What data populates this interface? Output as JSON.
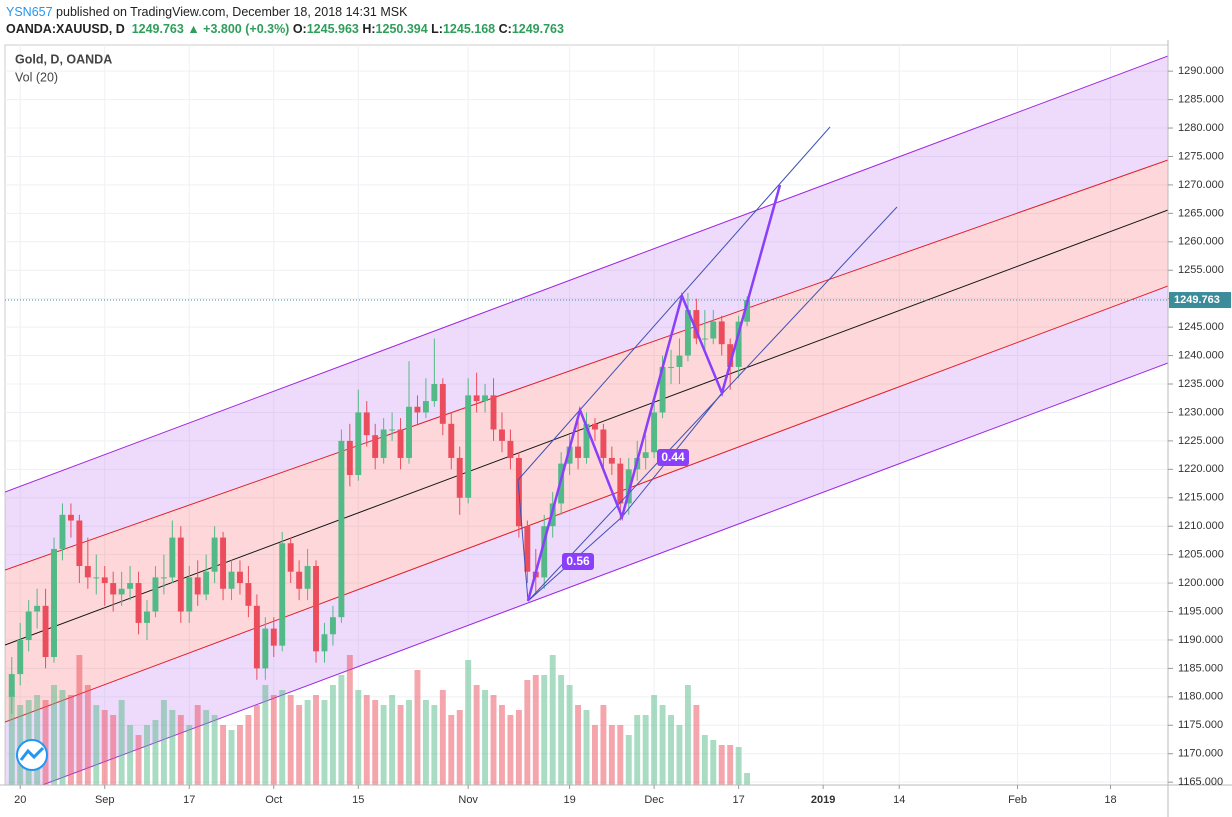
{
  "header": {
    "user": "YSN657",
    "published": " published on TradingView.com, December 18, 2018 14:31 MSK",
    "symbol": "OANDA:XAUUSD, D",
    "change": "▲ +3.800 (+0.3%)",
    "o": "O:",
    "h": "H:",
    "l": "L:",
    "c": "C:"
  },
  "chart_data": {
    "type": "candlestick",
    "title": "Gold, D, OANDA",
    "volume_title": "Vol (20)",
    "annotations": [
      "0.56",
      "0.44"
    ],
    "up_color": "#53b987",
    "down_color": "#eb4d5c",
    "xlim": [
      -0.8,
      136.8
    ],
    "xticks": [
      {
        "value": 1,
        "label": "20"
      },
      {
        "value": 11,
        "label": "Sep"
      },
      {
        "value": 21,
        "label": "17"
      },
      {
        "value": 31,
        "label": "Oct"
      },
      {
        "value": 41,
        "label": "15"
      },
      {
        "value": 54,
        "label": "Nov"
      },
      {
        "value": 66,
        "label": "19"
      },
      {
        "value": 76,
        "label": "Dec"
      },
      {
        "value": 86,
        "label": "17"
      },
      {
        "value": 96,
        "label": "2019"
      },
      {
        "value": 105,
        "label": "14"
      },
      {
        "value": 119,
        "label": "Feb"
      },
      {
        "value": 130,
        "label": "18"
      }
    ],
    "ylim": [
      1164.5,
      1294.6
    ],
    "yticks": [
      {
        "value": 1165,
        "label": "1165.000"
      },
      {
        "value": 1170,
        "label": "1170.000"
      },
      {
        "value": 1175,
        "label": "1175.000"
      },
      {
        "value": 1180,
        "label": "1180.000"
      },
      {
        "value": 1185,
        "label": "1185.000"
      },
      {
        "value": 1190,
        "label": "1190.000"
      },
      {
        "value": 1195,
        "label": "1195.000"
      },
      {
        "value": 1200,
        "label": "1200.000"
      },
      {
        "value": 1205,
        "label": "1205.000"
      },
      {
        "value": 1210,
        "label": "1210.000"
      },
      {
        "value": 1215,
        "label": "1215.000"
      },
      {
        "value": 1220,
        "label": "1220.000"
      },
      {
        "value": 1225,
        "label": "1225.000"
      },
      {
        "value": 1230,
        "label": "1230.000"
      },
      {
        "value": 1235,
        "label": "1235.000"
      },
      {
        "value": 1240,
        "label": "1240.000"
      },
      {
        "value": 1245,
        "label": "1245.000"
      },
      {
        "value": 1250,
        "label": "1250.000"
      },
      {
        "value": 1255,
        "label": "1255.000"
      },
      {
        "value": 1260,
        "label": "1260.000"
      },
      {
        "value": 1265,
        "label": "1265.000"
      },
      {
        "value": 1270,
        "label": "1270.000"
      },
      {
        "value": 1275,
        "label": "1275.000"
      },
      {
        "value": 1280,
        "label": "1280.000"
      },
      {
        "value": 1285,
        "label": "1285.000"
      },
      {
        "value": 1290,
        "label": "1290.000"
      }
    ],
    "grid": true,
    "vlim": [
      0,
      140
    ],
    "ohlc": [
      [
        1180,
        1187,
        1177,
        1184
      ],
      [
        1184,
        1193,
        1182,
        1190
      ],
      [
        1190,
        1197,
        1188,
        1195
      ],
      [
        1195,
        1199,
        1192,
        1196
      ],
      [
        1196,
        1199,
        1185,
        1187
      ],
      [
        1187,
        1208,
        1186,
        1206
      ],
      [
        1206,
        1214,
        1204,
        1212
      ],
      [
        1212,
        1214,
        1208,
        1211
      ],
      [
        1211,
        1212,
        1200,
        1203
      ],
      [
        1203,
        1208,
        1199,
        1201
      ],
      [
        1201,
        1205,
        1198,
        1201
      ],
      [
        1201,
        1203,
        1196,
        1200
      ],
      [
        1200,
        1202,
        1195,
        1198
      ],
      [
        1198,
        1202,
        1196,
        1199
      ],
      [
        1199,
        1203,
        1197,
        1200
      ],
      [
        1200,
        1202,
        1191,
        1193
      ],
      [
        1193,
        1197,
        1190,
        1195
      ],
      [
        1195,
        1203,
        1194,
        1201
      ],
      [
        1201,
        1205,
        1198,
        1201
      ],
      [
        1201,
        1211,
        1200,
        1208
      ],
      [
        1208,
        1210,
        1193,
        1195
      ],
      [
        1195,
        1203,
        1193,
        1201
      ],
      [
        1201,
        1204,
        1196,
        1198
      ],
      [
        1198,
        1205,
        1197,
        1202
      ],
      [
        1202,
        1210,
        1200,
        1208
      ],
      [
        1208,
        1209,
        1197,
        1199
      ],
      [
        1199,
        1204,
        1197,
        1202
      ],
      [
        1202,
        1204,
        1198,
        1200
      ],
      [
        1200,
        1203,
        1194,
        1196
      ],
      [
        1196,
        1198,
        1183,
        1185
      ],
      [
        1185,
        1194,
        1183,
        1192
      ],
      [
        1192,
        1194,
        1187,
        1189
      ],
      [
        1189,
        1209,
        1188,
        1207
      ],
      [
        1207,
        1208,
        1200,
        1202
      ],
      [
        1202,
        1204,
        1197,
        1199
      ],
      [
        1199,
        1206,
        1197,
        1203
      ],
      [
        1203,
        1204,
        1186,
        1188
      ],
      [
        1188,
        1193,
        1186,
        1191
      ],
      [
        1191,
        1196,
        1189,
        1194
      ],
      [
        1194,
        1227,
        1193,
        1225
      ],
      [
        1225,
        1228,
        1217,
        1219
      ],
      [
        1219,
        1234,
        1218,
        1230
      ],
      [
        1230,
        1232,
        1224,
        1226
      ],
      [
        1226,
        1228,
        1220,
        1222
      ],
      [
        1222,
        1229,
        1221,
        1227
      ],
      [
        1227,
        1230,
        1225,
        1227
      ],
      [
        1227,
        1229,
        1220,
        1222
      ],
      [
        1222,
        1239,
        1221,
        1231
      ],
      [
        1231,
        1233,
        1228,
        1230
      ],
      [
        1230,
        1236,
        1229,
        1232
      ],
      [
        1232,
        1243,
        1231,
        1235
      ],
      [
        1235,
        1236,
        1226,
        1228
      ],
      [
        1228,
        1230,
        1220,
        1222
      ],
      [
        1222,
        1224,
        1212,
        1215
      ],
      [
        1215,
        1236,
        1214,
        1233
      ],
      [
        1233,
        1237,
        1230,
        1232
      ],
      [
        1232,
        1235,
        1230,
        1233
      ],
      [
        1233,
        1236,
        1225,
        1227
      ],
      [
        1227,
        1230,
        1223,
        1225
      ],
      [
        1225,
        1227,
        1220,
        1222
      ],
      [
        1222,
        1223,
        1208,
        1210
      ],
      [
        1210,
        1211,
        1200,
        1202
      ],
      [
        1202,
        1206,
        1198,
        1201
      ],
      [
        1201,
        1212,
        1199,
        1210
      ],
      [
        1210,
        1216,
        1208,
        1214
      ],
      [
        1214,
        1223,
        1212,
        1221
      ],
      [
        1221,
        1226,
        1219,
        1224
      ],
      [
        1224,
        1229,
        1220,
        1222
      ],
      [
        1222,
        1230,
        1221,
        1228
      ],
      [
        1228,
        1229,
        1225,
        1227
      ],
      [
        1227,
        1228,
        1220,
        1222
      ],
      [
        1222,
        1224,
        1219,
        1221
      ],
      [
        1221,
        1222,
        1211,
        1214
      ],
      [
        1214,
        1222,
        1212,
        1220
      ],
      [
        1220,
        1225,
        1218,
        1222
      ],
      [
        1222,
        1226,
        1220,
        1223
      ],
      [
        1223,
        1232,
        1222,
        1230
      ],
      [
        1230,
        1240,
        1229,
        1238
      ],
      [
        1238,
        1241,
        1235,
        1238
      ],
      [
        1238,
        1243,
        1235,
        1240
      ],
      [
        1240,
        1251,
        1239,
        1248
      ],
      [
        1248,
        1250,
        1242,
        1243
      ],
      [
        1243,
        1248,
        1241,
        1243
      ],
      [
        1243,
        1248,
        1242,
        1246
      ],
      [
        1246,
        1247,
        1240,
        1242
      ],
      [
        1242,
        1243,
        1234,
        1238
      ],
      [
        1238,
        1247,
        1236,
        1245.963
      ],
      [
        1245.963,
        1250.394,
        1245.168,
        1249.763
      ]
    ],
    "volume": [
      95,
      80,
      85,
      90,
      85,
      100,
      95,
      90,
      130,
      100,
      80,
      75,
      70,
      85,
      60,
      50,
      60,
      65,
      85,
      75,
      70,
      60,
      80,
      75,
      70,
      60,
      55,
      60,
      70,
      80,
      100,
      90,
      95,
      90,
      80,
      85,
      90,
      85,
      100,
      110,
      130,
      95,
      90,
      85,
      80,
      90,
      80,
      85,
      115,
      85,
      80,
      95,
      70,
      75,
      125,
      100,
      95,
      90,
      80,
      70,
      75,
      105,
      110,
      110,
      130,
      110,
      100,
      80,
      75,
      60,
      80,
      60,
      60,
      50,
      70,
      70,
      90,
      80,
      70,
      60,
      100,
      80,
      50,
      45,
      40,
      40,
      38,
      12
    ]
  }
}
